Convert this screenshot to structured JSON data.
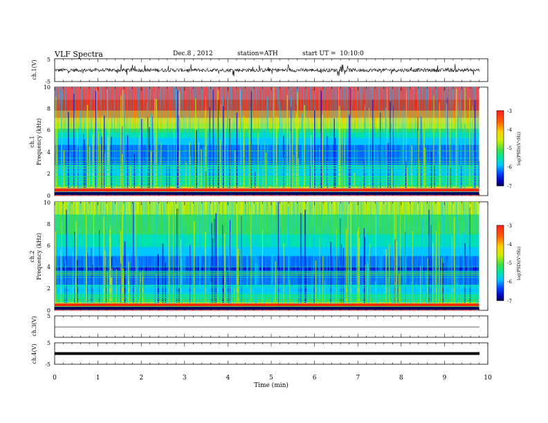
{
  "header": {
    "title": "VLF Spectra",
    "date": "Dec.8 , 2012",
    "station": "station=ATH",
    "start": "start UT =  10:10:0"
  },
  "colors": {
    "colormap": [
      "#000060",
      "#0000d0",
      "#0060ff",
      "#00c8ff",
      "#00e6a0",
      "#40e040",
      "#c8f000",
      "#ffe000",
      "#ff8000",
      "#ff2000",
      "#ff4040"
    ],
    "trace": "#000000"
  },
  "chart_data": [
    {
      "type": "line",
      "panel": "ch1-waveform",
      "ylabel": "ch.1(V)",
      "yticks": [
        "5",
        "-5"
      ],
      "ylim": [
        -5,
        5
      ],
      "description_value_range": [
        -1.5,
        1.5
      ]
    },
    {
      "type": "heatmap",
      "panel": "ch1-spectrogram",
      "ylabel_channel": "ch.1",
      "ylabel": "Frequency (kHz)",
      "yticks": [
        "0",
        "2",
        "4",
        "6",
        "8",
        "10"
      ],
      "ylim": [
        0,
        10
      ],
      "xlim": [
        0,
        9.8
      ],
      "colorbar": {
        "label": "log(PSD)(V²/Hz)",
        "ticks": [
          "-3",
          "-4",
          "-5",
          "-6",
          "-7"
        ],
        "range": [
          -7,
          -3
        ]
      },
      "band_level_by_frequency_kHz": [
        {
          "f": 0.5,
          "level": -3.2
        },
        {
          "f": 1.0,
          "level": -5.2
        },
        {
          "f": 2.0,
          "level": -5.6
        },
        {
          "f": 3.0,
          "level": -6.0
        },
        {
          "f": 4.0,
          "level": -6.1
        },
        {
          "f": 5.0,
          "level": -5.8
        },
        {
          "f": 6.0,
          "level": -5.0
        },
        {
          "f": 7.0,
          "level": -4.2
        },
        {
          "f": 8.0,
          "level": -3.6
        },
        {
          "f": 9.0,
          "level": -3.3
        },
        {
          "f": 10.0,
          "level": -3.2
        }
      ]
    },
    {
      "type": "heatmap",
      "panel": "ch2-spectrogram",
      "ylabel_channel": "ch.2",
      "ylabel": "Frequency (kHz)",
      "yticks": [
        "0",
        "2",
        "4",
        "6",
        "8",
        "10"
      ],
      "ylim": [
        0,
        10
      ],
      "xlim": [
        0,
        9.8
      ],
      "colorbar": {
        "label": "log(PSD)(V²/Hz)",
        "ticks": [
          "-3",
          "-4",
          "-5",
          "-6",
          "-7"
        ],
        "range": [
          -7,
          -3
        ]
      },
      "band_level_by_frequency_kHz": [
        {
          "f": 0.5,
          "level": -3.8
        },
        {
          "f": 1.0,
          "level": -5.2
        },
        {
          "f": 2.0,
          "level": -5.8
        },
        {
          "f": 3.0,
          "level": -6.2
        },
        {
          "f": 4.0,
          "level": -6.3
        },
        {
          "f": 5.0,
          "level": -5.9
        },
        {
          "f": 6.0,
          "level": -5.5
        },
        {
          "f": 7.0,
          "level": -5.2
        },
        {
          "f": 8.0,
          "level": -4.9
        },
        {
          "f": 9.0,
          "level": -4.8
        },
        {
          "f": 10.0,
          "level": -4.8
        }
      ]
    },
    {
      "type": "line",
      "panel": "ch3-waveform",
      "ylabel": "ch.3(V)",
      "yticks": [
        "5"
      ],
      "ylim": [
        -5,
        5
      ],
      "value": -0.2
    },
    {
      "type": "line",
      "panel": "ch4-waveform",
      "ylabel": "ch.4(V)",
      "yticks": [
        "5",
        "-5"
      ],
      "ylim": [
        -5,
        5
      ],
      "value": 0.0
    }
  ],
  "xaxis": {
    "label": "Time (min)",
    "ticks": [
      "0",
      "1",
      "2",
      "3",
      "4",
      "5",
      "6",
      "7",
      "8",
      "9",
      "10"
    ],
    "xlim": [
      0,
      10
    ]
  }
}
